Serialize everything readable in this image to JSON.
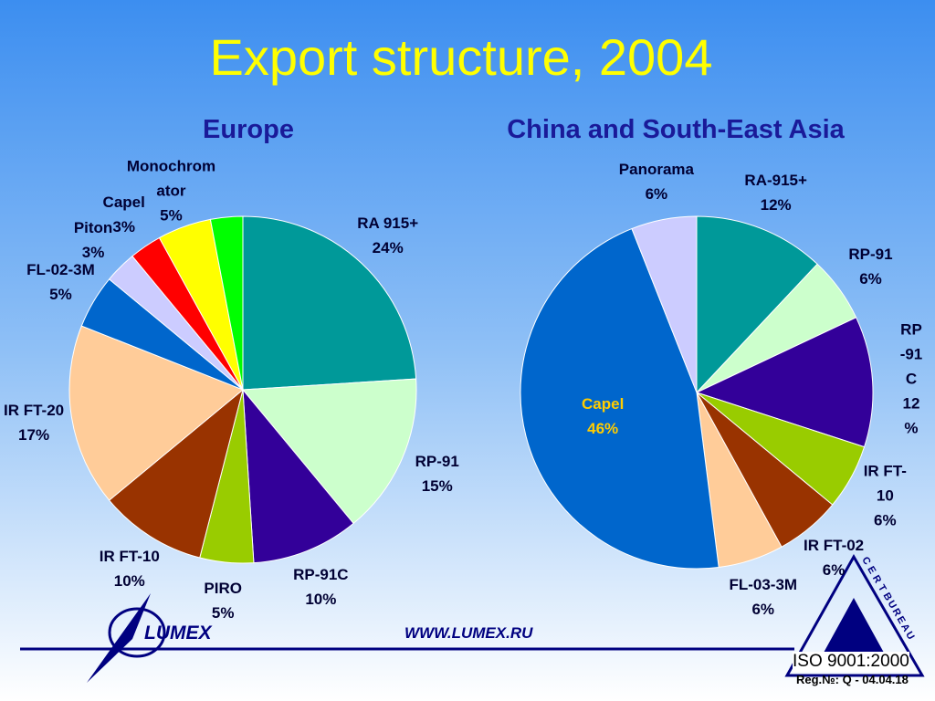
{
  "title": "Export structure, 2004",
  "chart_data": [
    {
      "type": "pie",
      "title": "Europe",
      "categories": [
        "RA 915+",
        "RP-91",
        "RP-91C",
        "PIRO",
        "IR FT-10",
        "IR FT-20",
        "FL-02-3M",
        "Piton",
        "Capel",
        "Monochromator",
        null
      ],
      "values": [
        24,
        15,
        10,
        5,
        10,
        17,
        5,
        3,
        3,
        5,
        3
      ],
      "value_labels": [
        "24%",
        "15%",
        "10%",
        "5%",
        "10%",
        "17%",
        "5%",
        "3%",
        "3%",
        "5%",
        null
      ],
      "colors": [
        "#009999",
        "#ccffcc",
        "#330099",
        "#99cc00",
        "#993300",
        "#ffcc99",
        "#0066cc",
        "#ccccff",
        "#ff0000",
        "#ffff00",
        "#00ff00"
      ]
    },
    {
      "type": "pie",
      "title": "China and South-East Asia",
      "categories": [
        "RA-915+",
        "RP-91",
        "RP-91C",
        "IR FT-10",
        "IR FT-02",
        "FL-03-3M",
        "Capel",
        "Panorama"
      ],
      "values": [
        12,
        6,
        12,
        6,
        6,
        6,
        46,
        6
      ],
      "value_labels": [
        "12%",
        "6%",
        "12%",
        "6%",
        "6%",
        "6%",
        "46%",
        "6%"
      ],
      "colors": [
        "#009999",
        "#ccffcc",
        "#330099",
        "#99cc00",
        "#993300",
        "#ffcc99",
        "#0066cc",
        "#ccccff"
      ]
    }
  ],
  "footer": {
    "url": "WWW.LUMEX.RU",
    "logo": "LUMEX",
    "cert": "CERT",
    "bureau": "BUREAU",
    "iso": "ISO 9001:2000",
    "reg": "Reg.№: Q - 04.04.18"
  }
}
